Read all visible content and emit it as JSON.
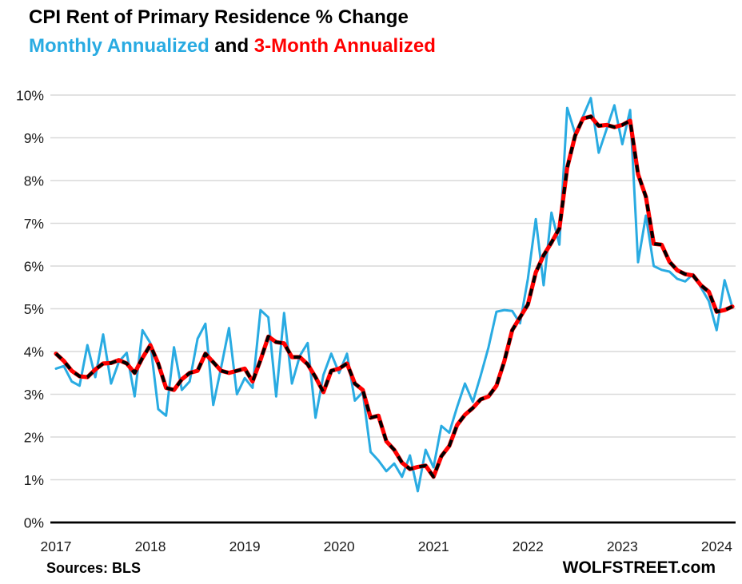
{
  "title": "CPI Rent of Primary Residence % Change",
  "subtitle": {
    "blue_part": "Monthly Annualized",
    "and_part": " and ",
    "red_part": "3-Month Annualized"
  },
  "footer": {
    "sources": "Sources: BLS",
    "brand": "WOLFSTREET.com"
  },
  "colors": {
    "blue": "#29ABE2",
    "red": "#FF0000",
    "dash": "#000000",
    "grid": "#D9D9D9",
    "axis": "#000000",
    "text": "#1a1a1a"
  },
  "chart_data": {
    "type": "line",
    "title": "CPI Rent of Primary Residence % Change",
    "subtitle": "Monthly Annualized and 3-Month Annualized",
    "xlabel": "",
    "ylabel": "",
    "ylim": [
      0,
      10
    ],
    "grid": true,
    "legend_position": "in-subtitle",
    "y_ticks": [
      "0%",
      "1%",
      "2%",
      "3%",
      "4%",
      "5%",
      "6%",
      "7%",
      "8%",
      "9%",
      "10%"
    ],
    "x_labels": [
      "2017",
      "2018",
      "2019",
      "2020",
      "2021",
      "2022",
      "2023",
      "2024"
    ],
    "x_period": "monthly",
    "months": [
      "2017-01",
      "2017-02",
      "2017-03",
      "2017-04",
      "2017-05",
      "2017-06",
      "2017-07",
      "2017-08",
      "2017-09",
      "2017-10",
      "2017-11",
      "2017-12",
      "2018-01",
      "2018-02",
      "2018-03",
      "2018-04",
      "2018-05",
      "2018-06",
      "2018-07",
      "2018-08",
      "2018-09",
      "2018-10",
      "2018-11",
      "2018-12",
      "2019-01",
      "2019-02",
      "2019-03",
      "2019-04",
      "2019-05",
      "2019-06",
      "2019-07",
      "2019-08",
      "2019-09",
      "2019-10",
      "2019-11",
      "2019-12",
      "2020-01",
      "2020-02",
      "2020-03",
      "2020-04",
      "2020-05",
      "2020-06",
      "2020-07",
      "2020-08",
      "2020-09",
      "2020-10",
      "2020-11",
      "2020-12",
      "2021-01",
      "2021-02",
      "2021-03",
      "2021-04",
      "2021-05",
      "2021-06",
      "2021-07",
      "2021-08",
      "2021-09",
      "2021-10",
      "2021-11",
      "2021-12",
      "2022-01",
      "2022-02",
      "2022-03",
      "2022-04",
      "2022-05",
      "2022-06",
      "2022-07",
      "2022-08",
      "2022-09",
      "2022-10",
      "2022-11",
      "2022-12",
      "2023-01",
      "2023-02",
      "2023-03",
      "2023-04",
      "2023-05",
      "2023-06",
      "2023-07",
      "2023-08",
      "2023-09",
      "2023-10",
      "2023-11",
      "2023-12",
      "2024-01",
      "2024-02",
      "2024-03"
    ],
    "series": [
      {
        "name": "Monthly Annualized",
        "color": "#29ABE2",
        "width": 3,
        "dash_overlay": false,
        "values": [
          3.6,
          3.66,
          3.3,
          3.2,
          4.15,
          3.4,
          4.4,
          3.25,
          3.76,
          3.97,
          2.95,
          4.5,
          4.2,
          2.65,
          2.5,
          4.1,
          3.1,
          3.3,
          4.3,
          4.65,
          2.75,
          3.63,
          4.55,
          3.0,
          3.38,
          3.15,
          4.97,
          4.8,
          2.95,
          4.9,
          3.25,
          3.9,
          4.2,
          2.45,
          3.45,
          3.95,
          3.5,
          3.95,
          2.85,
          3.05,
          1.65,
          1.45,
          1.2,
          1.38,
          1.07,
          1.57,
          0.73,
          1.7,
          1.29,
          2.26,
          2.1,
          2.7,
          3.25,
          2.82,
          3.44,
          4.1,
          4.93,
          4.97,
          4.95,
          4.66,
          5.7,
          7.1,
          5.55,
          7.25,
          6.5,
          9.7,
          9.1,
          9.5,
          9.93,
          8.65,
          9.2,
          9.76,
          8.85,
          9.65,
          6.09,
          7.18,
          6.0,
          5.91,
          5.87,
          5.7,
          5.64,
          5.81,
          5.5,
          5.18,
          4.5,
          5.67,
          5.03
        ]
      },
      {
        "name": "3-Month Annualized",
        "color": "#FF0000",
        "width": 5.2,
        "dash_overlay": true,
        "values": [
          3.95,
          3.78,
          3.55,
          3.42,
          3.4,
          3.58,
          3.72,
          3.73,
          3.8,
          3.72,
          3.5,
          3.85,
          4.15,
          3.72,
          3.15,
          3.1,
          3.35,
          3.5,
          3.55,
          3.95,
          3.75,
          3.55,
          3.5,
          3.55,
          3.6,
          3.3,
          3.8,
          4.35,
          4.22,
          4.19,
          3.87,
          3.87,
          3.7,
          3.4,
          3.05,
          3.55,
          3.6,
          3.72,
          3.25,
          3.1,
          2.45,
          2.5,
          1.9,
          1.7,
          1.4,
          1.25,
          1.3,
          1.33,
          1.07,
          1.55,
          1.79,
          2.28,
          2.52,
          2.68,
          2.88,
          2.95,
          3.2,
          3.77,
          4.5,
          4.8,
          5.1,
          5.85,
          6.25,
          6.55,
          6.88,
          8.3,
          9.05,
          9.45,
          9.5,
          9.28,
          9.3,
          9.25,
          9.3,
          9.4,
          8.15,
          7.62,
          6.52,
          6.5,
          6.1,
          5.9,
          5.81,
          5.78,
          5.55,
          5.4,
          4.93,
          4.97,
          5.05
        ]
      }
    ]
  }
}
